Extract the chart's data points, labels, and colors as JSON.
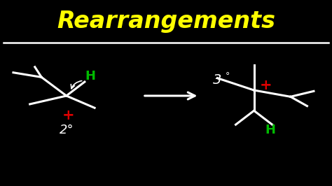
{
  "title": "Rearrangements",
  "title_color": "#FFFF00",
  "background_color": "#000000",
  "line_color": "#FFFFFF",
  "green_color": "#00BB00",
  "red_color": "#DD0000",
  "figsize": [
    4.74,
    2.66
  ],
  "dpi": 100,
  "lw": 2.2
}
